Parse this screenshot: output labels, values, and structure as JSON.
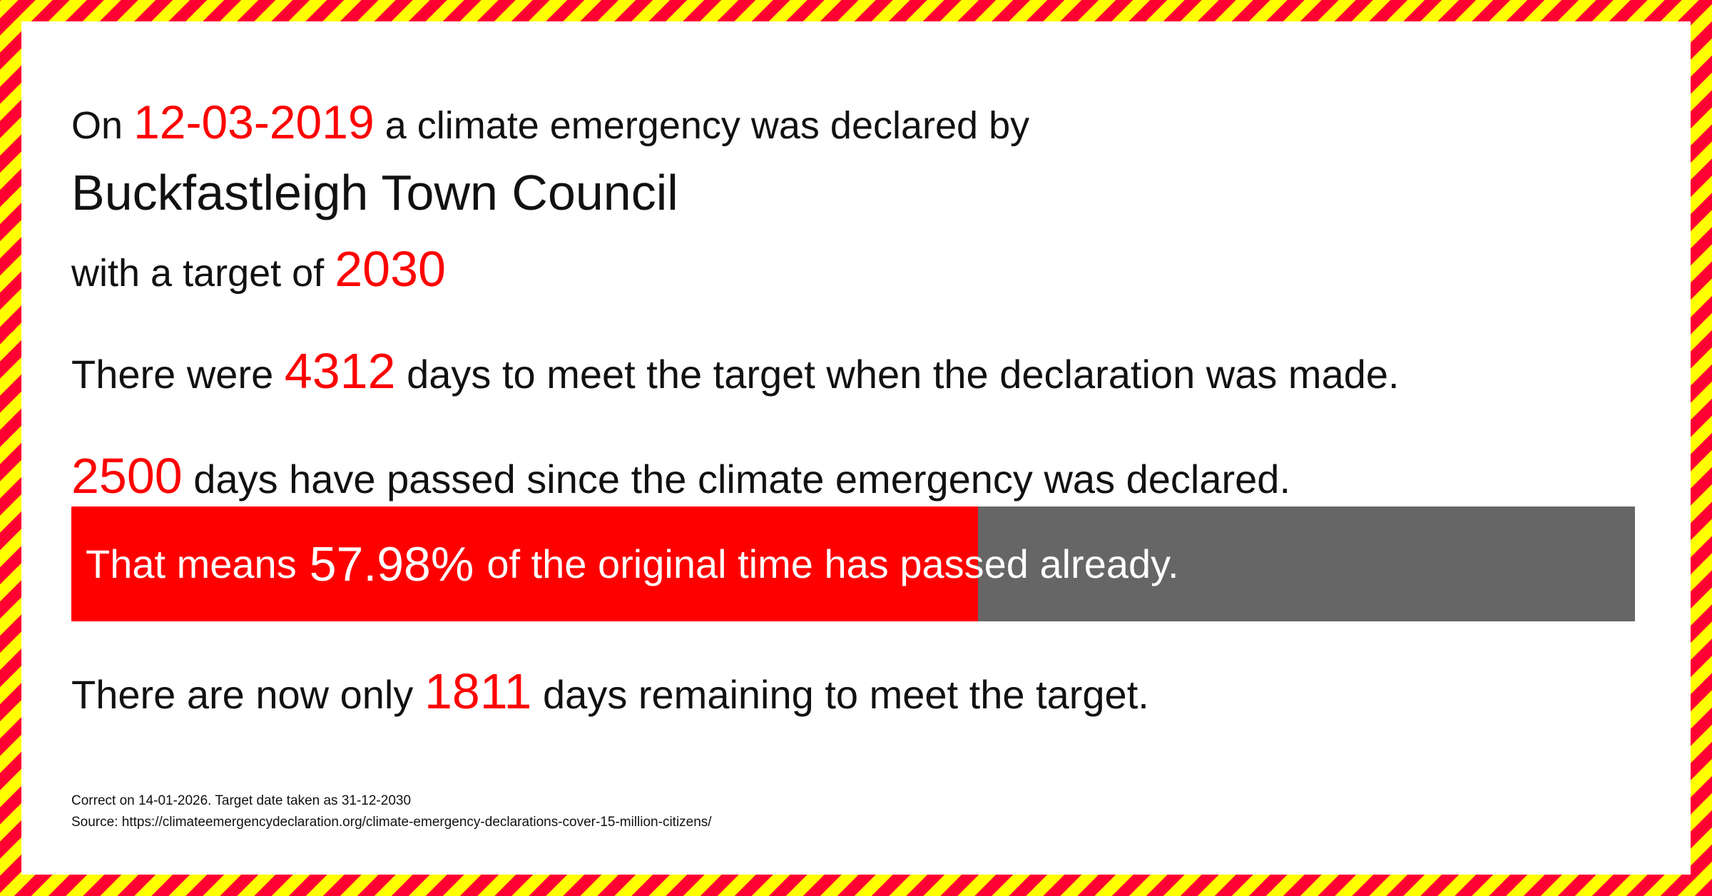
{
  "declaration": {
    "prefix": "On",
    "date": "12-03-2019",
    "suffix": "a climate emergency was declared by",
    "council": "Buckfastleigh Town Council",
    "target_prefix": "with a target of",
    "target_year": "2030"
  },
  "stats": {
    "total_prefix": "There were",
    "total_days": "4312",
    "total_suffix": "days to meet the target when the declaration was made.",
    "passed_days": "2500",
    "passed_suffix": "days have passed since the climate emergency was declared.",
    "progress_prefix": "That means",
    "progress_percent_label": "57.98%",
    "progress_percent": 57.98,
    "progress_suffix": "of the original time has passed already.",
    "remaining_prefix": "There are now only",
    "remaining_days": "1811",
    "remaining_suffix": "days remaining to meet the target."
  },
  "footer": {
    "correct_on": "Correct on 14-01-2026. Target date taken as 31-12-2030",
    "source": "Source: https://climateemergencydeclaration.org/climate-emergency-declarations-cover-15-million-citizens/"
  },
  "colors": {
    "accent": "#ff0000",
    "bar_remaining": "#666666",
    "stripe_red": "#ff0033",
    "stripe_yellow": "#ffff00"
  }
}
